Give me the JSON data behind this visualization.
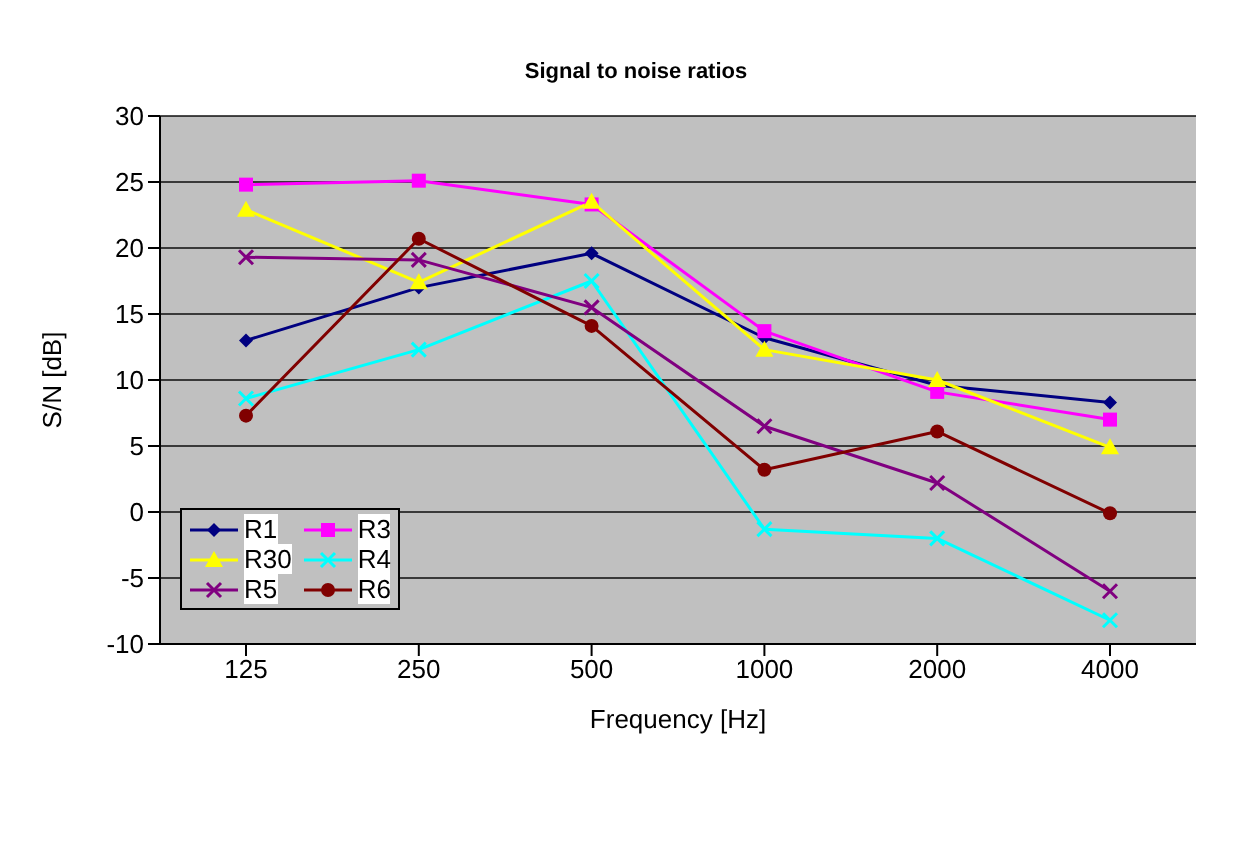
{
  "chart_data": {
    "type": "line",
    "title": "Signal to noise ratios",
    "xlabel": "Frequency [Hz]",
    "ylabel": "S/N [dB]",
    "categories": [
      "125",
      "250",
      "500",
      "1000",
      "2000",
      "4000"
    ],
    "series": [
      {
        "name": "R1",
        "color": "#000080",
        "marker": "diamond",
        "values": [
          13,
          17,
          19.6,
          13.2,
          9.6,
          8.3
        ]
      },
      {
        "name": "R3",
        "color": "#ff00ff",
        "marker": "square",
        "values": [
          24.8,
          25.1,
          23.3,
          13.7,
          9.1,
          7
        ]
      },
      {
        "name": "R30",
        "color": "#ffff00",
        "marker": "triangle",
        "values": [
          22.9,
          17.4,
          23.5,
          12.3,
          10,
          4.9
        ]
      },
      {
        "name": "R4",
        "color": "#00ffff",
        "marker": "cross",
        "values": [
          8.6,
          12.3,
          17.5,
          -1.3,
          -2,
          -8.2
        ]
      },
      {
        "name": "R5",
        "color": "#800080",
        "marker": "cross",
        "values": [
          19.3,
          19.1,
          15.5,
          6.5,
          2.2,
          -6
        ]
      },
      {
        "name": "R6",
        "color": "#800000",
        "marker": "circle",
        "values": [
          7.3,
          20.7,
          14.1,
          3.2,
          6.1,
          -0.1
        ]
      }
    ],
    "ylim": [
      -10,
      30
    ],
    "yticks": [
      -10,
      -5,
      0,
      5,
      10,
      15,
      20,
      25,
      30
    ],
    "grid": "y",
    "legend": "bottom left",
    "line_style": "solid"
  }
}
